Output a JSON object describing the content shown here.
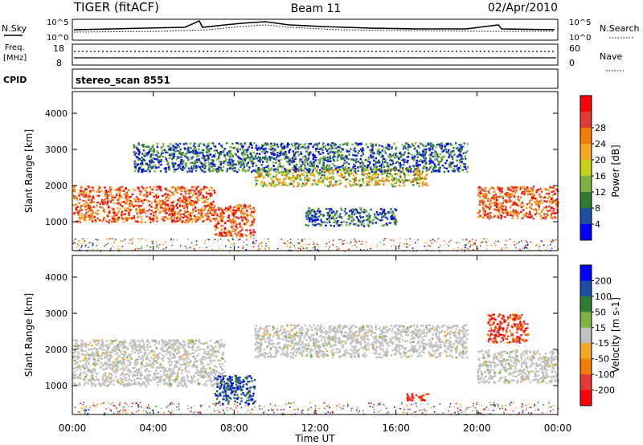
{
  "header": {
    "radar": "TIGER (fitACF)",
    "beam": "Beam 11",
    "date": "02/Apr/2010"
  },
  "summary_panels": {
    "nsky_label": "N.Sky",
    "nsky_ticks": [
      "10^5",
      "10^0"
    ],
    "nsearch_label": "N.Search",
    "nsearch_ticks": [
      "10^5",
      "10^0"
    ],
    "freq_label_line1": "Freq.",
    "freq_label_line2": "[MHz]",
    "freq_ticks": [
      "18",
      "8"
    ],
    "nave_label": "Nave",
    "nave_ticks": [
      "60",
      "0"
    ],
    "cpid_label": "CPID",
    "cpid_value": "stereo_scan 8551"
  },
  "x_axis": {
    "label": "Time UT",
    "ticks": [
      "00:00",
      "04:00",
      "08:00",
      "12:00",
      "16:00",
      "20:00",
      "00:00"
    ]
  },
  "chart_data": [
    {
      "type": "heatmap",
      "parameter": "Power",
      "ylabel": "Slant Range [km]",
      "yticks": [
        "1000",
        "2000",
        "3000",
        "4000"
      ],
      "ylim": [
        200,
        4600
      ],
      "xlim_hours": [
        0,
        24
      ],
      "colorbar_label": "Power [dB]",
      "colorbar_ticks": [
        "4",
        "8",
        "12",
        "16",
        "20",
        "24",
        "28"
      ],
      "colorbar_colors": [
        "#0000ff",
        "#1c4fa0",
        "#2e7d32",
        "#7cb342",
        "#c8d21a",
        "#f5a623",
        "#f57c00",
        "#e53935",
        "#ff0000"
      ],
      "bands": [
        {
          "t_start": 0.0,
          "t_end": 7.0,
          "r_low": 1000,
          "r_high": 2000,
          "level": "high"
        },
        {
          "t_start": 7.0,
          "t_end": 9.0,
          "r_low": 600,
          "r_high": 1500,
          "level": "high"
        },
        {
          "t_start": 9.0,
          "t_end": 17.5,
          "r_low": 2000,
          "r_high": 2500,
          "level": "medium"
        },
        {
          "t_start": 11.5,
          "t_end": 16.0,
          "r_low": 900,
          "r_high": 1400,
          "level": "low"
        },
        {
          "t_start": 20.0,
          "t_end": 24.0,
          "r_low": 1100,
          "r_high": 2000,
          "level": "high"
        },
        {
          "t_start": 3.0,
          "t_end": 19.5,
          "r_low": 2400,
          "r_high": 3200,
          "level": "low"
        }
      ]
    },
    {
      "type": "heatmap",
      "parameter": "Velocity",
      "ylabel": "Slant Range [km]",
      "yticks": [
        "1000",
        "2000",
        "3000",
        "4000"
      ],
      "ylim": [
        200,
        4600
      ],
      "xlim_hours": [
        0,
        24
      ],
      "colorbar_label": "Velocity [m s-1]",
      "colorbar_ticks": [
        "200",
        "100",
        "50",
        "15",
        "-15",
        "-50",
        "-100",
        "-200"
      ],
      "colorbar_colors": [
        "#0000ff",
        "#1c4fa0",
        "#2e7d32",
        "#7cb342",
        "#c0c0c0",
        "#f5a623",
        "#f57c00",
        "#e53935",
        "#ff0000"
      ],
      "bands": [
        {
          "t_start": 0.0,
          "t_end": 7.5,
          "r_low": 1000,
          "r_high": 2300,
          "velocity": "ground"
        },
        {
          "t_start": 7.0,
          "t_end": 9.0,
          "r_low": 500,
          "r_high": 1300,
          "velocity": "positive"
        },
        {
          "t_start": 9.0,
          "t_end": 19.5,
          "r_low": 1800,
          "r_high": 2700,
          "velocity": "ground"
        },
        {
          "t_start": 16.5,
          "t_end": 17.8,
          "r_low": 600,
          "r_high": 800,
          "velocity": "negative"
        },
        {
          "t_start": 20.5,
          "t_end": 22.5,
          "r_low": 2200,
          "r_high": 3000,
          "velocity": "negative"
        },
        {
          "t_start": 20.0,
          "t_end": 24.0,
          "r_low": 1100,
          "r_high": 2000,
          "velocity": "ground"
        }
      ]
    }
  ]
}
